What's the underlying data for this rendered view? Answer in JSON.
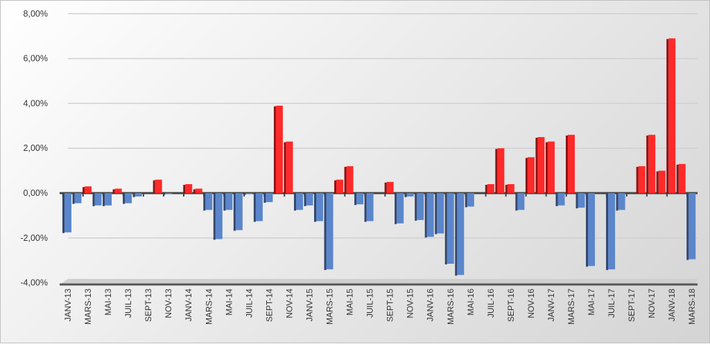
{
  "chart_data": {
    "type": "bar",
    "title": "",
    "xlabel": "",
    "ylabel": "",
    "ylim": [
      -4,
      8
    ],
    "y_ticks": [
      "8,00%",
      "6,00%",
      "4,00%",
      "2,00%",
      "0,00%",
      "-2,00%",
      "-4,00%"
    ],
    "y_tick_values": [
      8,
      6,
      4,
      2,
      0,
      -2,
      -4
    ],
    "grid": true,
    "legend": "none",
    "colors": {
      "positive": "#ff2a2a",
      "negative": "#5b86cc"
    },
    "categories": [
      "JANV-13",
      "",
      "MARS-13",
      "",
      "MAI-13",
      "",
      "JUIL-13",
      "",
      "SEPT-13",
      "",
      "NOV-13",
      "",
      "JANV-14",
      "",
      "MARS-14",
      "",
      "MAI-14",
      "",
      "JUIL-14",
      "",
      "SEPT-14",
      "",
      "NOV-14",
      "",
      "JANV-15",
      "",
      "MARS-15",
      "",
      "MAI-15",
      "",
      "JUIL-15",
      "",
      "SEPT-15",
      "",
      "NOV-15",
      "",
      "JANV-16",
      "",
      "MARS-16",
      "",
      "MAI-16",
      "",
      "JUIL-16",
      "",
      "SEPT-16",
      "",
      "NOV-16",
      "",
      "JANV-17",
      "",
      "MARS-17",
      "",
      "MAI-17",
      "",
      "JUIL-17",
      "",
      "SEPT-17",
      "",
      "NOV-17",
      "",
      "JANV-18",
      "",
      "MARS-18"
    ],
    "values": [
      -1.75,
      -0.45,
      0.3,
      -0.55,
      -0.55,
      0.2,
      -0.45,
      -0.15,
      0,
      0.6,
      -0.05,
      0,
      0.4,
      0.2,
      -0.75,
      -2.05,
      -0.75,
      -1.65,
      -0.05,
      -1.25,
      -0.4,
      3.9,
      2.3,
      -0.75,
      -0.55,
      -1.25,
      -3.4,
      0.6,
      1.2,
      -0.5,
      -1.25,
      0,
      0.5,
      -1.35,
      -0.15,
      -1.2,
      -1.95,
      -1.8,
      -3.15,
      -3.65,
      -0.6,
      0,
      0.4,
      2.0,
      0.4,
      -0.75,
      1.6,
      2.5,
      2.3,
      -0.55,
      2.6,
      -0.65,
      -3.25,
      0,
      -3.4,
      -0.75,
      0,
      1.2,
      2.6,
      1.0,
      6.9,
      1.3,
      -2.95
    ]
  }
}
